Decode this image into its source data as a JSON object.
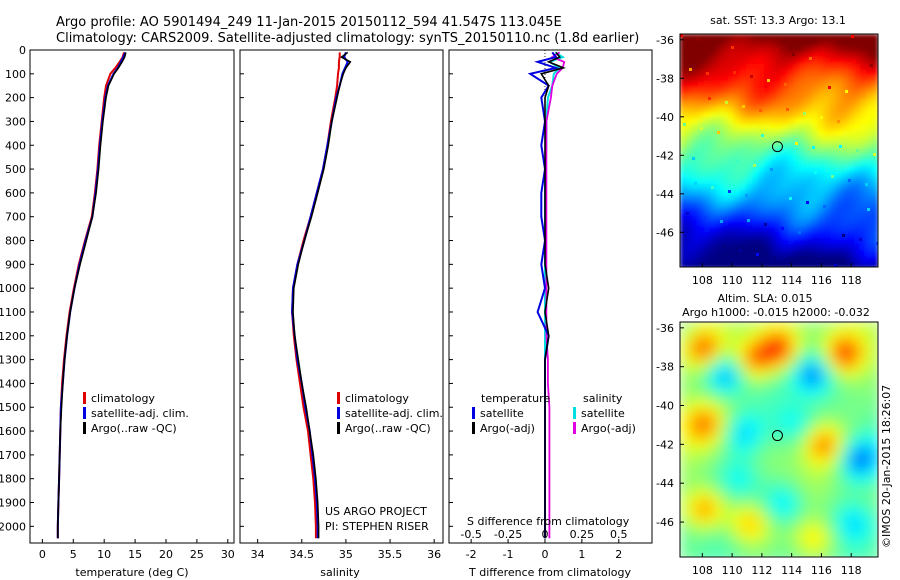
{
  "header": {
    "line1": "Argo profile: AO 5901494_249 11-Jan-2015 20150112_594 41.547S 113.045E",
    "line2": "Climatology: CARS2009. Satellite-adjusted climatology: synTS_20150110.nc (1.8d earlier)"
  },
  "sst_map": {
    "title": "sat. SST: 13.3 Argo: 13.1"
  },
  "sla_map": {
    "title1": "Altim. SLA: 0.015",
    "title2": "Argo h1000: -0.015 h2000: -0.032"
  },
  "credit": "©IMOS 20-Jan-2015 18:26:07",
  "project": {
    "line1": "US ARGO PROJECT",
    "line2": "PI: STEPHEN RISER"
  },
  "colors": {
    "climatology": "#e00000",
    "satellite": "#0000e0",
    "argo": "#000000",
    "sal_satellite": "#00e0e0",
    "sal_argo": "#e000e0"
  },
  "chart_data": [
    {
      "type": "line",
      "xlabel": "temperature (deg C)",
      "ylabel": "",
      "xlim": [
        -2,
        31
      ],
      "ylim": [
        2070,
        0
      ],
      "xticks": [
        0,
        5,
        10,
        15,
        20,
        25,
        30
      ],
      "yticks": [
        0,
        100,
        200,
        300,
        400,
        500,
        600,
        700,
        800,
        900,
        1000,
        1100,
        1200,
        1300,
        1400,
        1500,
        1600,
        1700,
        1800,
        1900,
        2000
      ],
      "legend": [
        "climatology",
        "satellite-adj. clim.",
        "Argo(..raw -QC)"
      ],
      "series": [
        {
          "name": "climatology",
          "depth": [
            10,
            30,
            50,
            75,
            100,
            150,
            200,
            300,
            400,
            500,
            600,
            700,
            800,
            900,
            1000,
            1100,
            1200,
            1300,
            1400,
            1500,
            1600,
            1700,
            1800,
            1900,
            2000,
            2050
          ],
          "values": [
            13.2,
            13.0,
            12.5,
            11.8,
            11.0,
            10.3,
            10.0,
            9.6,
            9.2,
            8.9,
            8.5,
            8.0,
            6.9,
            5.9,
            5.1,
            4.4,
            3.9,
            3.5,
            3.2,
            3.0,
            2.9,
            2.8,
            2.7,
            2.6,
            2.5,
            2.5
          ]
        },
        {
          "name": "satellite-adj. clim.",
          "depth": [
            10,
            30,
            50,
            75,
            100,
            150,
            200,
            300,
            400,
            500,
            600,
            700,
            800,
            900,
            1000,
            1100,
            1200,
            1300,
            1400,
            1500,
            1600,
            1700,
            1800,
            1900,
            2000,
            2050
          ],
          "values": [
            13.4,
            13.1,
            12.7,
            12.2,
            11.5,
            10.6,
            10.2,
            9.7,
            9.3,
            9.0,
            8.6,
            8.1,
            7.0,
            6.0,
            5.2,
            4.5,
            4.0,
            3.6,
            3.3,
            3.0,
            2.9,
            2.8,
            2.7,
            2.6,
            2.5,
            2.5
          ]
        },
        {
          "name": "Argo(..raw -QC)",
          "depth": [
            10,
            30,
            50,
            75,
            100,
            150,
            200,
            300,
            400,
            500,
            600,
            700,
            800,
            900,
            1000,
            1100,
            1200,
            1300,
            1400,
            1500,
            1600,
            1700,
            1800,
            1900,
            2000,
            2050
          ],
          "values": [
            13.5,
            13.3,
            12.9,
            12.3,
            11.6,
            10.7,
            10.3,
            9.8,
            9.4,
            9.1,
            8.7,
            8.1,
            7.1,
            6.1,
            5.2,
            4.5,
            4.0,
            3.6,
            3.3,
            3.1,
            2.9,
            2.8,
            2.7,
            2.6,
            2.5,
            2.5
          ]
        }
      ]
    },
    {
      "type": "line",
      "xlabel": "salinity",
      "xlim": [
        33.8,
        36.1
      ],
      "ylim": [
        2070,
        0
      ],
      "xticks": [
        34,
        34.5,
        35,
        35.5,
        36
      ],
      "legend": [
        "climatology",
        "satellite-adj. clim.",
        "Argo(..raw -QC)"
      ],
      "series": [
        {
          "name": "climatology",
          "depth": [
            10,
            30,
            50,
            75,
            100,
            150,
            200,
            300,
            400,
            500,
            600,
            700,
            800,
            900,
            1000,
            1100,
            1200,
            1300,
            1400,
            1500,
            1600,
            1700,
            1800,
            1900,
            2000,
            2050
          ],
          "values": [
            34.93,
            34.93,
            34.92,
            34.92,
            34.91,
            34.9,
            34.88,
            34.83,
            34.79,
            34.74,
            34.67,
            34.6,
            34.52,
            34.45,
            34.4,
            34.39,
            34.41,
            34.44,
            34.48,
            34.52,
            34.57,
            34.6,
            34.63,
            34.65,
            34.66,
            34.66
          ]
        },
        {
          "name": "satellite-adj. clim.",
          "depth": [
            10,
            30,
            50,
            75,
            100,
            150,
            200,
            300,
            400,
            500,
            600,
            700,
            800,
            900,
            1000,
            1100,
            1200,
            1300,
            1400,
            1500,
            1600,
            1700,
            1800,
            1900,
            2000,
            2050
          ],
          "values": [
            35.0,
            34.98,
            35.02,
            34.99,
            34.96,
            34.93,
            34.89,
            34.84,
            34.79,
            34.74,
            34.67,
            34.6,
            34.53,
            34.45,
            34.4,
            34.39,
            34.42,
            34.45,
            34.5,
            34.54,
            34.59,
            34.62,
            34.65,
            34.67,
            34.68,
            34.68
          ]
        },
        {
          "name": "Argo(..raw -QC)",
          "depth": [
            10,
            30,
            50,
            75,
            100,
            150,
            200,
            300,
            400,
            500,
            600,
            700,
            800,
            900,
            1000,
            1100,
            1200,
            1300,
            1400,
            1500,
            1600,
            1700,
            1800,
            1900,
            2000,
            2050
          ],
          "values": [
            35.02,
            34.95,
            35.05,
            35.0,
            34.97,
            34.93,
            34.9,
            34.84,
            34.8,
            34.75,
            34.68,
            34.61,
            34.53,
            34.46,
            34.41,
            34.4,
            34.42,
            34.46,
            34.5,
            34.55,
            34.59,
            34.63,
            34.66,
            34.68,
            34.69,
            34.69
          ]
        }
      ]
    },
    {
      "type": "line",
      "xlabel": "T difference from climatology",
      "xlabel_top": "S difference from climatology",
      "xlim": [
        -2.6,
        2.9
      ],
      "ylim": [
        2070,
        0
      ],
      "xticks": [
        -2,
        -1,
        0,
        1,
        2
      ],
      "xticks_top": [
        -0.5,
        -0.25,
        0,
        0.25,
        0.5
      ],
      "legend_title_left": "temperature",
      "legend_title_right": "salinity",
      "legend": [
        "satellite",
        "Argo(-adj)",
        "satellite",
        "Argo(-adj)"
      ],
      "series": [
        {
          "name": "satellite",
          "depth": [
            10,
            30,
            50,
            75,
            100,
            150,
            200,
            300,
            400,
            500,
            600,
            700,
            800,
            900,
            1000,
            1100,
            1200,
            1300,
            1400,
            1500,
            1600,
            1700,
            1800,
            1900,
            2000,
            2050
          ],
          "values": [
            0.2,
            0.3,
            -0.2,
            0.3,
            -0.4,
            0.1,
            -0.1,
            0.0,
            -0.1,
            0.0,
            -0.1,
            -0.1,
            0.0,
            -0.1,
            0.0,
            -0.2,
            0.1,
            0.0,
            0.0,
            0.0,
            0.0,
            0.0,
            0.0,
            0.0,
            0.0,
            0.0
          ]
        },
        {
          "name": "Argo(-adj)",
          "depth": [
            10,
            30,
            50,
            75,
            100,
            150,
            200,
            300,
            400,
            500,
            600,
            700,
            800,
            900,
            1000,
            1100,
            1200,
            1300,
            1400,
            1500,
            1600,
            1700,
            1800,
            1900,
            2000,
            2050
          ],
          "values": [
            0.3,
            0.4,
            0.1,
            0.5,
            -0.1,
            0.1,
            0.0,
            0.0,
            0.0,
            0.0,
            0.0,
            0.0,
            0.0,
            0.0,
            0.1,
            0.0,
            0.1,
            0.0,
            0.0,
            0.0,
            0.0,
            0.0,
            0.0,
            0.0,
            0.0,
            0.0
          ]
        },
        {
          "name": "satellite",
          "axis": "top",
          "depth": [
            10,
            30,
            50,
            75,
            100,
            150,
            200,
            300,
            400,
            500,
            600,
            700,
            800,
            900,
            1000,
            1100,
            1200,
            1300,
            1400,
            1500,
            1600,
            1700,
            1800,
            1900,
            2000,
            2050
          ],
          "values": [
            0.07,
            0.12,
            0.03,
            0.1,
            0.06,
            0.05,
            0.02,
            0.01,
            0.01,
            0.0,
            0.0,
            0.0,
            0.0,
            0.0,
            0.0,
            0.0,
            0.0,
            0.0,
            0.0,
            0.0,
            0.0,
            0.0,
            0.0,
            0.0,
            0.0,
            0.0
          ]
        },
        {
          "name": "Argo(-adj)",
          "axis": "top",
          "depth": [
            10,
            30,
            50,
            75,
            100,
            150,
            200,
            300,
            400,
            500,
            600,
            700,
            800,
            900,
            1000,
            1100,
            1200,
            1300,
            1400,
            1500,
            1600,
            1700,
            1800,
            1900,
            2000,
            2050
          ],
          "values": [
            0.1,
            0.05,
            0.13,
            0.12,
            0.08,
            0.05,
            0.04,
            0.01,
            0.01,
            0.01,
            0.01,
            0.01,
            0.01,
            0.01,
            0.01,
            0.01,
            0.01,
            0.02,
            0.02,
            0.03,
            0.03,
            0.03,
            0.03,
            0.03,
            0.03,
            0.03
          ]
        }
      ]
    },
    {
      "type": "heatmap",
      "title": "sat. SST: 13.3 Argo: 13.1",
      "xlim": [
        106.5,
        119.8
      ],
      "ylim": [
        -47.8,
        -35.7
      ],
      "xticks": [
        108,
        110,
        112,
        114,
        116,
        118
      ],
      "yticks": [
        -36,
        -38,
        -40,
        -42,
        -44,
        -46
      ],
      "marker": {
        "lon": 113.045,
        "lat": -41.547
      }
    },
    {
      "type": "heatmap",
      "title": "Altim. SLA: 0.015",
      "xlim": [
        106.5,
        119.8
      ],
      "ylim": [
        -47.8,
        -35.7
      ],
      "xticks": [
        108,
        110,
        112,
        114,
        116,
        118
      ],
      "yticks": [
        -36,
        -38,
        -40,
        -42,
        -44,
        -46
      ],
      "marker": {
        "lon": 113.045,
        "lat": -41.547
      }
    }
  ]
}
